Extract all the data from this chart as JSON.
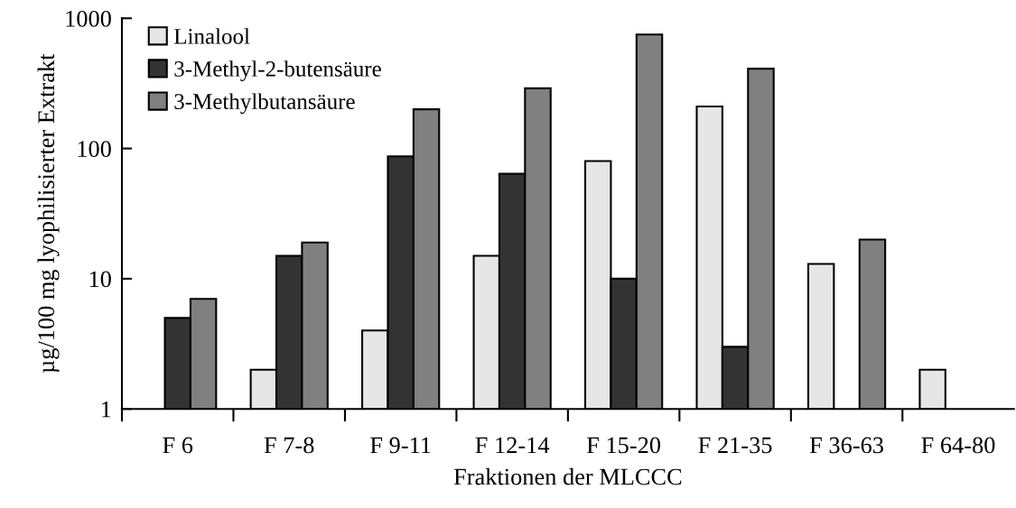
{
  "chart_data": {
    "type": "bar",
    "xlabel": "Fraktionen der MLCCC",
    "ylabel": "µg/100 mg lyophilisierter Extrakt",
    "categories": [
      "F 6",
      "F 7-8",
      "F 9-11",
      "F 12-14",
      "F 15-20",
      "F 21-35",
      "F 36-63",
      "F 64-80"
    ],
    "series": [
      {
        "name": "Linalool",
        "color": "#e6e6e6",
        "values": [
          null,
          2,
          4,
          15,
          80,
          210,
          13,
          2
        ]
      },
      {
        "name": "3-Methyl-2-butensäure",
        "color": "#333333",
        "values": [
          5,
          15,
          87,
          64,
          10,
          3,
          null,
          null
        ]
      },
      {
        "name": "3-Methylbutansäure",
        "color": "#808080",
        "values": [
          7,
          19,
          200,
          290,
          750,
          410,
          20,
          null
        ]
      }
    ],
    "log": true,
    "ylim": [
      1,
      1000
    ],
    "yticks": [
      1,
      10,
      100,
      1000
    ],
    "legend": "top left",
    "grid": false
  }
}
